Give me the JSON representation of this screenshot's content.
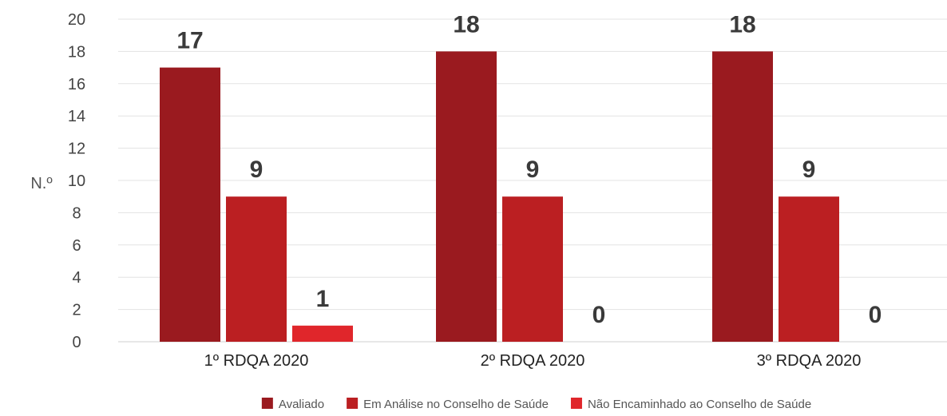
{
  "chart_data": {
    "type": "bar",
    "title": "",
    "xlabel": "",
    "ylabel": "N.º",
    "ylim": [
      0,
      20
    ],
    "ytick_step": 2,
    "grid": true,
    "legend_position": "bottom",
    "categories": [
      "1º RDQA 2020",
      "2º RDQA 2020",
      "3º RDQA 2020"
    ],
    "series": [
      {
        "name": "Avaliado",
        "color": "#9a1a1f",
        "values": [
          17,
          18,
          18
        ]
      },
      {
        "name": "Em Análise no Conselho de Saúde",
        "color": "#bb1f22",
        "values": [
          9,
          9,
          9
        ]
      },
      {
        "name": "Não Encaminhado ao Conselho de Saúde",
        "color": "#e0262b",
        "values": [
          1,
          0,
          0
        ]
      }
    ]
  }
}
